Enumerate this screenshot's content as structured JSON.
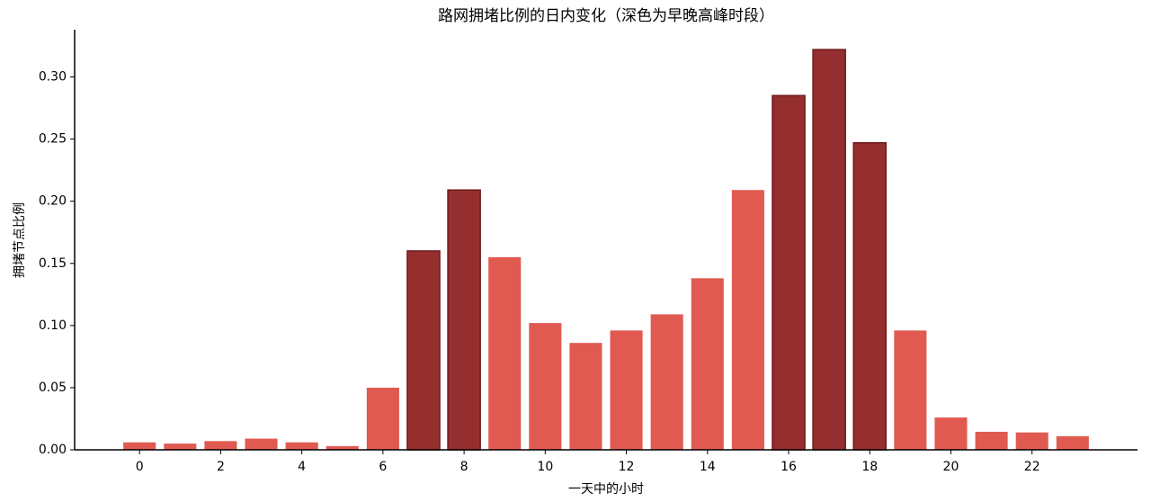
{
  "chart_data": {
    "type": "bar",
    "title": "路网拥堵比例的日内变化（深色为早晚高峰时段）",
    "xlabel": "一天中的小时",
    "ylabel": "拥堵节点比例",
    "x": [
      0,
      1,
      2,
      3,
      4,
      5,
      6,
      7,
      8,
      9,
      10,
      11,
      12,
      13,
      14,
      15,
      16,
      17,
      18,
      19,
      20,
      21,
      22,
      23
    ],
    "values": [
      0.006,
      0.005,
      0.007,
      0.009,
      0.006,
      0.003,
      0.05,
      0.16,
      0.209,
      0.155,
      0.102,
      0.086,
      0.096,
      0.109,
      0.138,
      0.209,
      0.285,
      0.322,
      0.247,
      0.096,
      0.026,
      0.0145,
      0.014,
      0.011
    ],
    "colors": [
      "#e05a52",
      "#e05a52",
      "#e05a52",
      "#e05a52",
      "#e05a52",
      "#e05a52",
      "#e05a52",
      "#952f2f",
      "#952f2f",
      "#e05a52",
      "#e05a52",
      "#e05a52",
      "#e05a52",
      "#e05a52",
      "#e05a52",
      "#e05a52",
      "#952f2f",
      "#952f2f",
      "#952f2f",
      "#e05a52",
      "#e05a52",
      "#e05a52",
      "#e05a52",
      "#e05a52"
    ],
    "xlim": [
      -1.6,
      24.6
    ],
    "xticks": [
      0,
      2,
      4,
      6,
      8,
      10,
      12,
      14,
      16,
      18,
      20,
      22
    ],
    "ylim": [
      0,
      0.338
    ],
    "yticks": [
      {
        "value": 0,
        "label": "0.00"
      },
      0.05,
      {
        "value": 0.1,
        "label": "0.10"
      },
      0.15,
      {
        "value": 0.2,
        "label": "0.20"
      },
      0.25,
      {
        "value": 0.3,
        "label": "0.30"
      }
    ],
    "grid": false
  }
}
